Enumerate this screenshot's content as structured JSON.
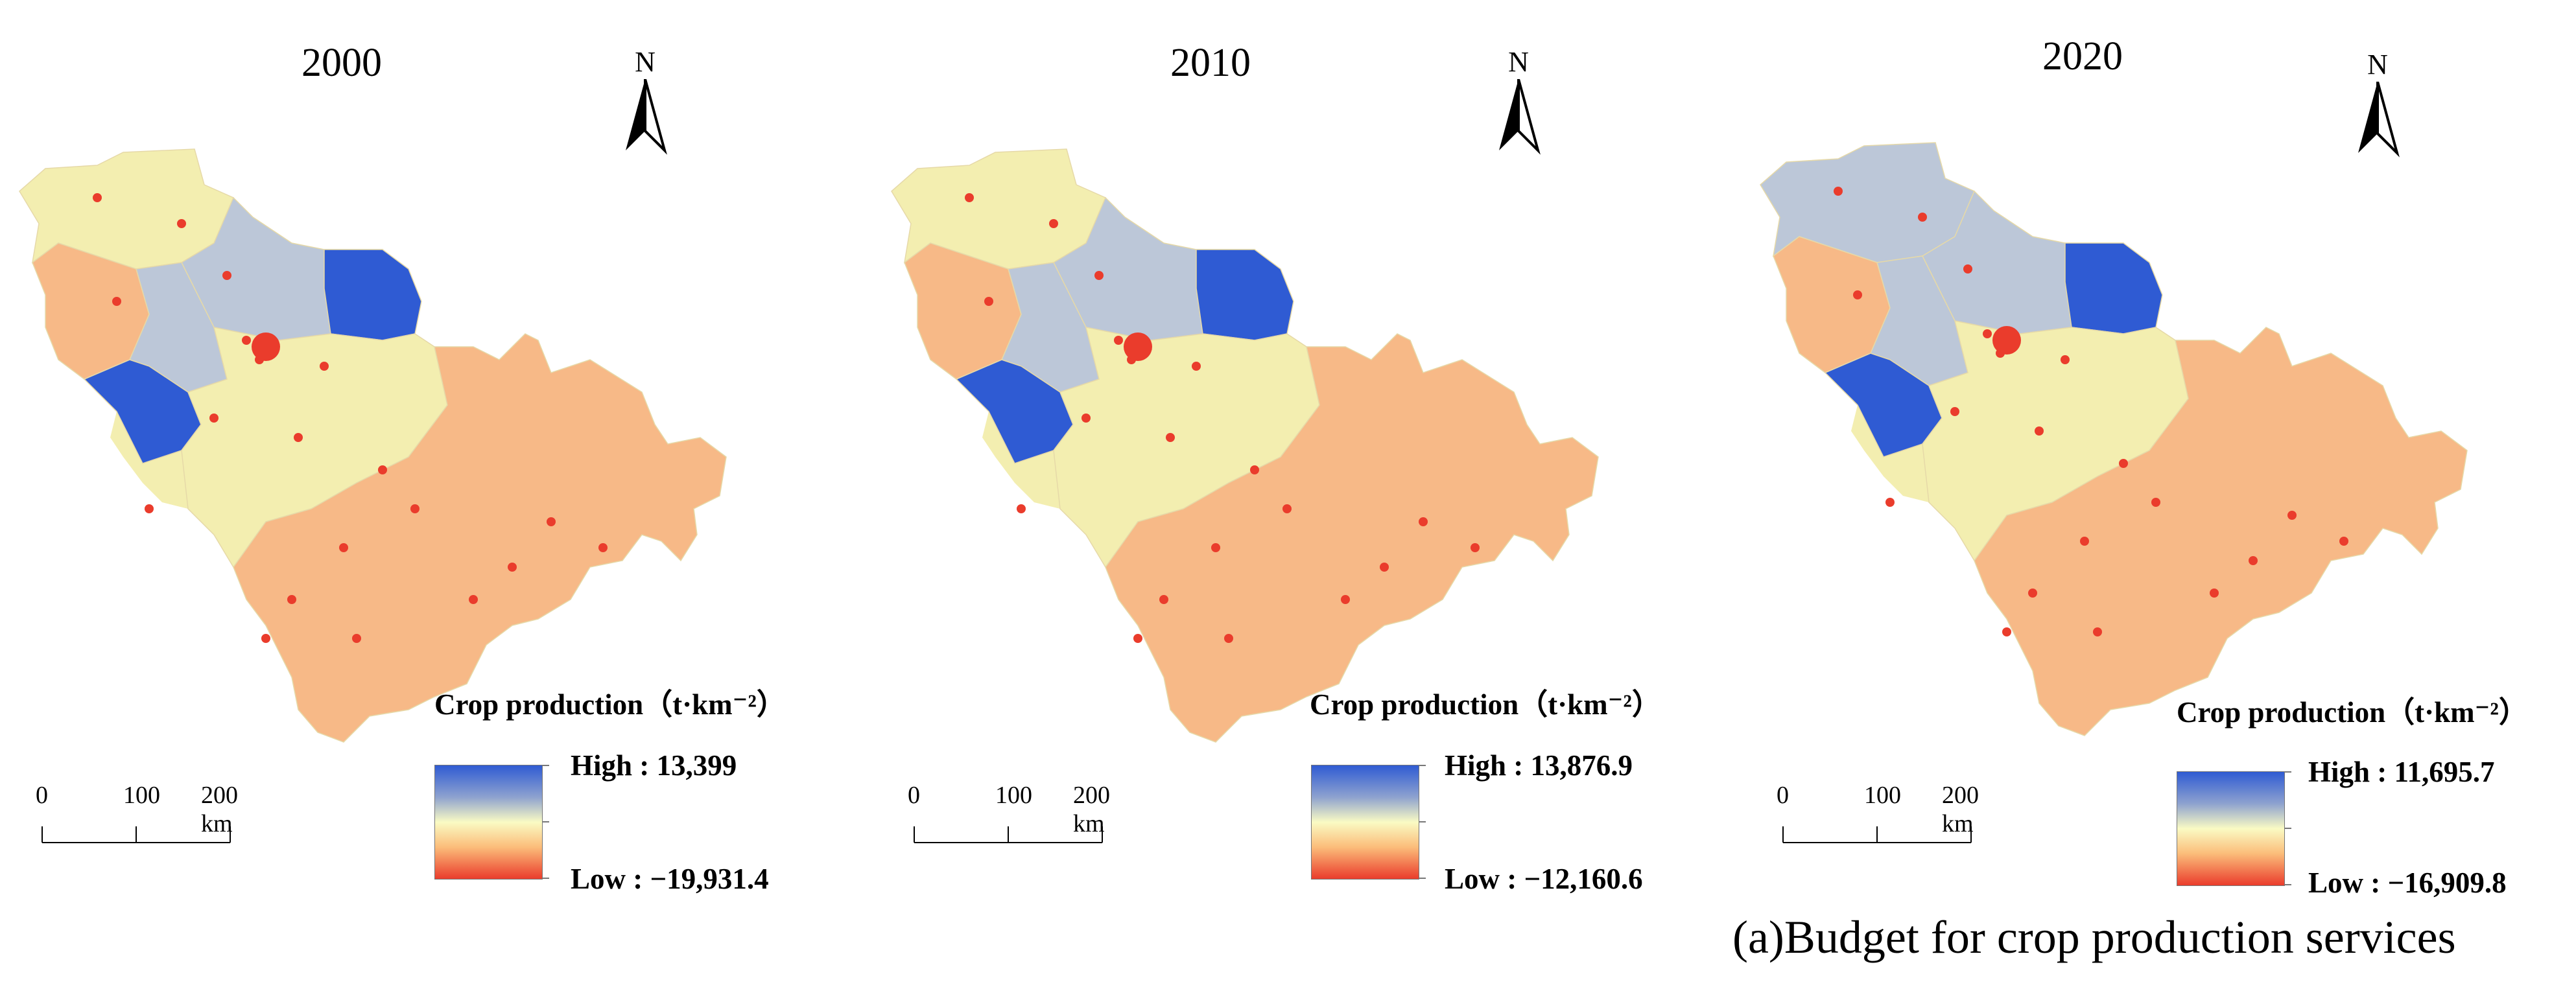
{
  "panels": [
    {
      "year": "2000",
      "north_label": "N",
      "scale": [
        "0",
        "100",
        "200 km"
      ],
      "legend": {
        "title": "Crop production（t·km⁻²）",
        "high": "High : 13,399",
        "low": "Low : −19,931.4"
      }
    },
    {
      "year": "2010",
      "north_label": "N",
      "scale": [
        "0",
        "100",
        "200 km"
      ],
      "legend": {
        "title": "Crop production（t·km⁻²）",
        "high": "High : 13,876.9",
        "low": "Low : −12,160.6"
      }
    },
    {
      "year": "2020",
      "north_label": "N",
      "scale": [
        "0",
        "100",
        "200 km"
      ],
      "legend": {
        "title": "Crop production（t·km⁻²）",
        "high": "High : 11,695.7",
        "low": "Low : −16,909.8"
      }
    }
  ],
  "caption": "(a)Budget for crop production services",
  "colors": {
    "high": "#2f5bd3",
    "mid": "#fafbc4",
    "low": "#ea3c2c",
    "orange": "#f7b987",
    "yellow": "#f3eeb0",
    "lightblue": "#bcc7d8"
  }
}
